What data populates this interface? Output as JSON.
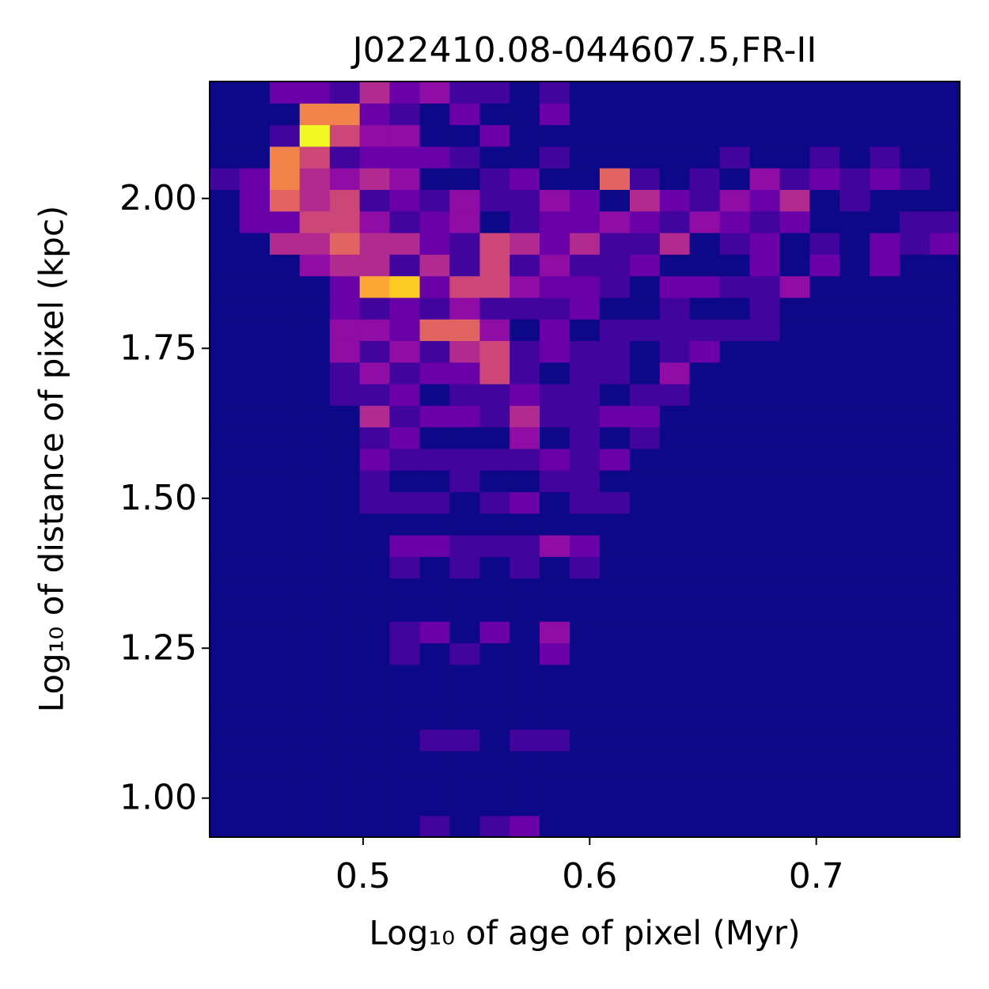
{
  "chart_data": {
    "type": "heatmap",
    "title": "J022410.08-044607.5,FR-II",
    "x_label": "Log₁₀ of age of pixel (Myr)",
    "y_label": "Log₁₀ of distance of pixel (kpc)",
    "xlim": [
      0.4323,
      0.7633
    ],
    "ylim": [
      0.935,
      2.195
    ],
    "xticks": [
      0.5,
      0.6,
      0.7
    ],
    "yticks": [
      {
        "value": 1,
        "label": "1.00"
      },
      1.25,
      {
        "value": 1.5,
        "label": "1.50"
      },
      1.75,
      {
        "value": 2,
        "label": "2.00"
      }
    ],
    "x_bins": [
      0.4323,
      0.4455,
      0.4588,
      0.472,
      0.4853,
      0.4985,
      0.5117,
      0.525,
      0.5382,
      0.5515,
      0.5647,
      0.5779,
      0.5912,
      0.6044,
      0.6177,
      0.6309,
      0.6441,
      0.6574,
      0.6706,
      0.6839,
      0.6971,
      0.7103,
      0.7236,
      0.7368,
      0.7501,
      0.7633
    ],
    "y_bins": [
      0.935,
      0.971,
      1.007,
      1.043,
      1.079,
      1.115,
      1.151,
      1.187,
      1.223,
      1.259,
      1.295,
      1.331,
      1.367,
      1.403,
      1.439,
      1.475,
      1.511,
      1.547,
      1.583,
      1.619,
      1.655,
      1.691,
      1.727,
      1.763,
      1.799,
      1.835,
      1.871,
      1.907,
      1.943,
      1.979,
      2.015,
      2.051,
      2.087,
      2.123,
      2.159,
      2.195
    ],
    "clim": [
      0,
      10
    ],
    "colormap": [
      "#0d0887",
      "#41049d",
      "#6a00a8",
      "#8f0da4",
      "#b12a90",
      "#cc4778",
      "#e16462",
      "#f2844b",
      "#fca636",
      "#fcce25",
      "#f0f921"
    ],
    "z": [
      [
        0,
        0,
        0,
        0,
        0,
        0,
        0,
        1,
        0,
        1,
        2,
        0,
        0,
        0,
        0,
        0,
        0,
        0,
        0,
        0,
        0,
        0,
        0,
        0,
        0
      ],
      [
        0,
        0,
        0,
        0,
        0,
        0,
        0,
        0,
        0,
        0,
        0,
        0,
        0,
        0,
        0,
        0,
        0,
        0,
        0,
        0,
        0,
        0,
        0,
        0,
        0
      ],
      [
        0,
        0,
        0,
        0,
        0,
        0,
        0,
        0,
        0,
        0,
        0,
        0,
        0,
        0,
        0,
        0,
        0,
        0,
        0,
        0,
        0,
        0,
        0,
        0,
        0
      ],
      [
        0,
        0,
        0,
        0,
        0,
        0,
        0,
        0,
        0,
        0,
        0,
        0,
        0,
        0,
        0,
        0,
        0,
        0,
        0,
        0,
        0,
        0,
        0,
        0,
        0
      ],
      [
        0,
        0,
        0,
        0,
        0,
        0,
        0,
        1,
        1,
        0,
        1,
        1,
        0,
        0,
        0,
        0,
        0,
        0,
        0,
        0,
        0,
        0,
        0,
        0,
        0
      ],
      [
        0,
        0,
        0,
        0,
        0,
        0,
        0,
        0,
        0,
        0,
        0,
        0,
        0,
        0,
        0,
        0,
        0,
        0,
        0,
        0,
        0,
        0,
        0,
        0,
        0
      ],
      [
        0,
        0,
        0,
        0,
        0,
        0,
        0,
        0,
        0,
        0,
        0,
        0,
        0,
        0,
        0,
        0,
        0,
        0,
        0,
        0,
        0,
        0,
        0,
        0,
        0
      ],
      [
        0,
        0,
        0,
        0,
        0,
        0,
        0,
        0,
        0,
        0,
        0,
        0,
        0,
        0,
        0,
        0,
        0,
        0,
        0,
        0,
        0,
        0,
        0,
        0,
        0
      ],
      [
        0,
        0,
        0,
        0,
        0,
        0,
        1,
        0,
        1,
        0,
        0,
        2,
        0,
        0,
        0,
        0,
        0,
        0,
        0,
        0,
        0,
        0,
        0,
        0,
        0
      ],
      [
        0,
        0,
        0,
        0,
        0,
        0,
        1,
        2,
        0,
        2,
        0,
        3,
        0,
        0,
        0,
        0,
        0,
        0,
        0,
        0,
        0,
        0,
        0,
        0,
        0
      ],
      [
        0,
        0,
        0,
        0,
        0,
        0,
        0,
        0,
        0,
        0,
        0,
        0,
        0,
        0,
        0,
        0,
        0,
        0,
        0,
        0,
        0,
        0,
        0,
        0,
        0
      ],
      [
        0,
        0,
        0,
        0,
        0,
        0,
        0,
        0,
        0,
        0,
        0,
        0,
        0,
        0,
        0,
        0,
        0,
        0,
        0,
        0,
        0,
        0,
        0,
        0,
        0
      ],
      [
        0,
        0,
        0,
        0,
        0,
        0,
        1,
        0,
        1,
        0,
        1,
        0,
        1,
        0,
        0,
        0,
        0,
        0,
        0,
        0,
        0,
        0,
        0,
        0,
        0
      ],
      [
        0,
        0,
        0,
        0,
        0,
        0,
        2,
        2,
        1,
        1,
        1,
        3,
        2,
        0,
        0,
        0,
        0,
        0,
        0,
        0,
        0,
        0,
        0,
        0,
        0
      ],
      [
        0,
        0,
        0,
        0,
        0,
        0,
        0,
        0,
        0,
        0,
        0,
        0,
        0,
        0,
        0,
        0,
        0,
        0,
        0,
        0,
        0,
        0,
        0,
        0,
        0
      ],
      [
        0,
        0,
        0,
        0,
        0,
        1,
        1,
        1,
        0,
        1,
        2,
        0,
        1,
        1,
        0,
        0,
        0,
        0,
        0,
        0,
        0,
        0,
        0,
        0,
        0
      ],
      [
        0,
        0,
        0,
        0,
        0,
        1,
        0,
        0,
        1,
        0,
        0,
        1,
        1,
        0,
        0,
        0,
        0,
        0,
        0,
        0,
        0,
        0,
        0,
        0,
        0
      ],
      [
        0,
        0,
        0,
        0,
        0,
        2,
        1,
        1,
        1,
        1,
        1,
        2,
        1,
        2,
        0,
        0,
        0,
        0,
        0,
        0,
        0,
        0,
        0,
        0,
        0
      ],
      [
        0,
        0,
        0,
        0,
        0,
        1,
        2,
        0,
        0,
        0,
        3,
        0,
        1,
        0,
        1,
        0,
        0,
        0,
        0,
        0,
        0,
        0,
        0,
        0,
        0
      ],
      [
        0,
        0,
        0,
        0,
        0,
        4,
        1,
        2,
        2,
        1,
        4,
        1,
        1,
        2,
        2,
        0,
        0,
        0,
        0,
        0,
        0,
        0,
        0,
        0,
        0
      ],
      [
        0,
        0,
        0,
        0,
        1,
        1,
        2,
        0,
        1,
        1,
        2,
        1,
        1,
        0,
        1,
        1,
        0,
        0,
        0,
        0,
        0,
        0,
        0,
        0,
        0
      ],
      [
        0,
        0,
        0,
        0,
        1,
        3,
        1,
        2,
        2,
        5,
        1,
        0,
        1,
        1,
        0,
        3,
        0,
        0,
        0,
        0,
        0,
        0,
        0,
        0,
        0
      ],
      [
        0,
        0,
        0,
        0,
        3,
        1,
        3,
        1,
        4,
        5,
        1,
        2,
        1,
        1,
        0,
        1,
        2,
        0,
        0,
        0,
        0,
        0,
        0,
        0,
        0
      ],
      [
        0,
        0,
        0,
        0,
        3,
        3,
        2,
        6,
        6,
        3,
        0,
        2,
        0,
        1,
        1,
        1,
        1,
        1,
        1,
        0,
        0,
        0,
        0,
        0,
        0
      ],
      [
        0,
        0,
        0,
        0,
        2,
        1,
        2,
        1,
        3,
        1,
        1,
        1,
        2,
        0,
        0,
        1,
        0,
        0,
        1,
        0,
        0,
        0,
        0,
        0,
        0
      ],
      [
        0,
        0,
        0,
        0,
        2,
        8,
        9,
        2,
        5,
        5,
        3,
        2,
        2,
        1,
        0,
        2,
        2,
        1,
        1,
        3,
        0,
        0,
        0,
        0,
        0
      ],
      [
        0,
        0,
        0,
        3,
        4,
        4,
        1,
        4,
        1,
        5,
        1,
        3,
        1,
        1,
        2,
        0,
        0,
        0,
        2,
        0,
        2,
        0,
        2,
        0,
        0
      ],
      [
        0,
        0,
        4,
        4,
        6,
        4,
        4,
        2,
        1,
        5,
        4,
        2,
        4,
        1,
        1,
        4,
        0,
        1,
        2,
        0,
        1,
        0,
        2,
        1,
        2
      ],
      [
        0,
        2,
        2,
        5,
        5,
        3,
        1,
        2,
        3,
        0,
        1,
        2,
        2,
        3,
        2,
        1,
        3,
        2,
        1,
        2,
        0,
        0,
        0,
        1,
        1
      ],
      [
        0,
        2,
        6,
        4,
        5,
        1,
        2,
        1,
        3,
        1,
        1,
        3,
        2,
        0,
        4,
        2,
        1,
        3,
        2,
        4,
        0,
        1,
        0,
        0,
        0
      ],
      [
        1,
        2,
        7,
        4,
        3,
        4,
        3,
        0,
        0,
        1,
        2,
        0,
        0,
        6,
        1,
        0,
        1,
        0,
        3,
        1,
        2,
        1,
        2,
        1,
        0
      ],
      [
        0,
        0,
        7,
        5,
        1,
        2,
        2,
        2,
        1,
        0,
        0,
        1,
        0,
        0,
        0,
        0,
        0,
        1,
        0,
        0,
        1,
        0,
        1,
        0,
        0
      ],
      [
        0,
        0,
        1,
        10,
        5,
        3,
        3,
        0,
        0,
        2,
        0,
        0,
        0,
        0,
        0,
        0,
        0,
        0,
        0,
        0,
        0,
        0,
        0,
        0,
        0
      ],
      [
        0,
        0,
        0,
        7,
        7,
        2,
        1,
        0,
        2,
        0,
        0,
        2,
        0,
        0,
        0,
        0,
        0,
        0,
        0,
        0,
        0,
        0,
        0,
        0,
        0
      ],
      [
        0,
        0,
        2,
        2,
        1,
        4,
        2,
        3,
        1,
        1,
        0,
        1,
        0,
        0,
        0,
        0,
        0,
        0,
        0,
        0,
        0,
        0,
        0,
        0,
        0
      ]
    ]
  }
}
